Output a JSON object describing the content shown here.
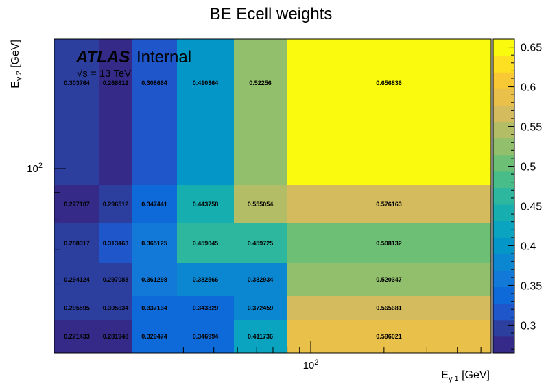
{
  "chart_data": {
    "type": "heatmap",
    "title": "BE Ecell weights",
    "xlabel": "E_{γ1} [GeV]",
    "ylabel": "E_{γ2} [GeV]",
    "xscale": "log",
    "yscale": "log",
    "x_tick_label": "10^2",
    "y_tick_label": "10^2",
    "z_range": [
      0.265,
      0.66
    ],
    "colorbar_ticks": [
      "0.3",
      "0.35",
      "0.4",
      "0.45",
      "0.5",
      "0.55",
      "0.6",
      "0.65"
    ],
    "colorbar_tick_values": [
      0.3,
      0.35,
      0.4,
      0.45,
      0.5,
      0.55,
      0.6,
      0.65
    ],
    "rows": [
      {
        "values": [
          0.271433,
          0.281948,
          0.329474,
          0.346994,
          0.411736,
          0.596021
        ],
        "labels": [
          "0.271433",
          "0.281948",
          "0.329474",
          "0.346994",
          "0.411736",
          "0.596021"
        ]
      },
      {
        "values": [
          0.295595,
          0.305634,
          0.337134,
          0.343329,
          0.372459,
          0.565681
        ],
        "labels": [
          "0.295595",
          "0.305634",
          "0.337134",
          "0.343329",
          "0.372459",
          "0.565681"
        ]
      },
      {
        "values": [
          0.294124,
          0.297083,
          0.361298,
          0.382566,
          0.382934,
          0.520347
        ],
        "labels": [
          "0.294124",
          "0.297083",
          "0.361298",
          "0.382566",
          "0.382934",
          "0.520347"
        ]
      },
      {
        "values": [
          0.288317,
          0.313463,
          0.365125,
          0.459045,
          0.459725,
          0.508132
        ],
        "labels": [
          "0.288317",
          "0.313463",
          "0.365125",
          "0.459045",
          "0.459725",
          "0.508132"
        ]
      },
      {
        "values": [
          0.277107,
          0.296512,
          0.347441,
          0.443758,
          0.555054,
          0.576163
        ],
        "labels": [
          "0.277107",
          "0.296512",
          "0.347441",
          "0.443758",
          "0.555054",
          "0.576163"
        ]
      },
      {
        "values": [
          0.303764,
          0.268612,
          0.308664,
          0.410364,
          0.52256,
          0.656836
        ],
        "labels": [
          "0.303764",
          "0.268612",
          "0.308664",
          "0.410364",
          "0.52256",
          "0.656836"
        ]
      }
    ],
    "annotations": {
      "atlas": "ATLAS",
      "internal": "Internal",
      "energy": "√s = 13 TeV"
    },
    "palette": [
      "#352a87",
      "#2c3e9e",
      "#1f56c9",
      "#0f6ad9",
      "#1279d9",
      "#0a87d0",
      "#0596c8",
      "#0aa3c0",
      "#17aeb0",
      "#2cb79e",
      "#49bd89",
      "#6ebf76",
      "#92bf6b",
      "#b3bd65",
      "#d3bb5e",
      "#e9c04a",
      "#f8c934",
      "#fde021",
      "#f9fa0e"
    ]
  }
}
